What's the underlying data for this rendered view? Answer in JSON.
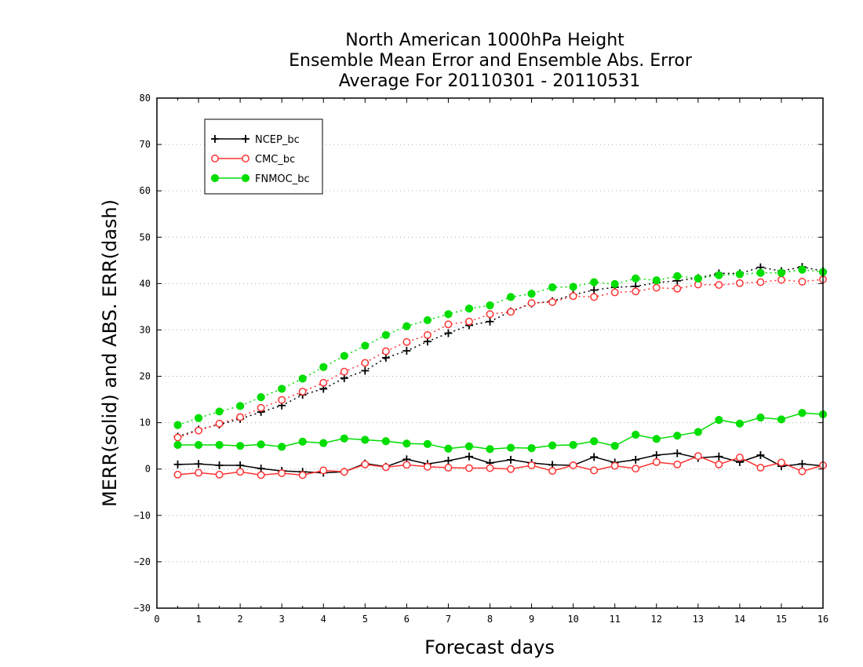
{
  "chart_data": {
    "type": "line",
    "title": [
      "North American 1000hPa Height",
      "Ensemble Mean Error and Ensemble Abs. Error",
      "Average For 20110301 - 20110531"
    ],
    "xlabel": "Forecast days",
    "ylabel": "MERR(solid) and ABS. ERR(dash)",
    "xlim": [
      0,
      16
    ],
    "ylim": [
      -30,
      80
    ],
    "xticks": [
      0,
      1,
      2,
      3,
      4,
      5,
      6,
      7,
      8,
      9,
      10,
      11,
      12,
      13,
      14,
      15,
      16
    ],
    "yticks": [
      -30,
      -20,
      -10,
      0,
      10,
      20,
      30,
      40,
      50,
      60,
      70,
      80
    ],
    "grid": "horizontal dotted",
    "legend_position": "top-left",
    "x": [
      0.5,
      1,
      1.5,
      2,
      2.5,
      3,
      3.5,
      4,
      4.5,
      5,
      5.5,
      6,
      6.5,
      7,
      7.5,
      8,
      8.5,
      9,
      9.5,
      10,
      10.5,
      11,
      11.5,
      12,
      12.5,
      13,
      13.5,
      14,
      14.5,
      15,
      15.5,
      16
    ],
    "series": [
      {
        "name": "NCEP_bc",
        "color": "#000000",
        "marker": "plus",
        "mean_error": [
          1.0,
          1.1,
          0.8,
          0.8,
          0.1,
          -0.4,
          -0.6,
          -0.8,
          -0.6,
          1.2,
          0.5,
          2.1,
          1.1,
          1.8,
          2.7,
          1.3,
          2.0,
          1.3,
          0.9,
          0.8,
          2.6,
          1.4,
          2.0,
          3.0,
          3.4,
          2.4,
          2.7,
          1.5,
          3.0,
          0.6,
          1.1,
          0.7
        ],
        "abs_error": [
          7.0,
          8.5,
          9.6,
          10.8,
          12.3,
          13.7,
          16.0,
          17.3,
          19.6,
          21.2,
          24.0,
          25.5,
          27.5,
          29.3,
          31.0,
          31.8,
          34.0,
          35.7,
          36.2,
          37.6,
          38.6,
          39.2,
          39.4,
          40.2,
          40.6,
          41.2,
          42.2,
          42.2,
          43.5,
          42.7,
          43.6,
          42.7
        ]
      },
      {
        "name": "CMC_bc",
        "color": "#ff3333",
        "marker": "open-circle",
        "mean_error": [
          -1.2,
          -0.8,
          -1.2,
          -0.6,
          -1.3,
          -0.9,
          -1.3,
          -0.3,
          -0.6,
          1.0,
          0.4,
          0.9,
          0.5,
          0.3,
          0.2,
          0.2,
          0.0,
          0.8,
          -0.4,
          0.8,
          -0.3,
          0.7,
          0.1,
          1.5,
          1.0,
          2.8,
          1.0,
          2.5,
          0.3,
          1.4,
          -0.5,
          0.8
        ],
        "abs_error": [
          6.8,
          8.3,
          9.8,
          11.2,
          13.2,
          14.9,
          16.7,
          18.6,
          21.0,
          22.9,
          25.4,
          27.4,
          28.9,
          31.2,
          31.8,
          33.4,
          33.9,
          35.8,
          36.0,
          37.3,
          37.1,
          38.1,
          38.3,
          39.1,
          38.9,
          39.8,
          39.7,
          40.1,
          40.3,
          40.8,
          40.4,
          40.9
        ]
      },
      {
        "name": "FNMOC_bc",
        "color": "#00dd00",
        "marker": "filled-circle",
        "mean_error": [
          5.2,
          5.2,
          5.2,
          5.0,
          5.3,
          4.8,
          5.9,
          5.6,
          6.6,
          6.3,
          6.0,
          5.5,
          5.4,
          4.4,
          4.9,
          4.3,
          4.6,
          4.5,
          5.1,
          5.2,
          6.0,
          5.0,
          7.4,
          6.5,
          7.2,
          8.0,
          10.6,
          9.8,
          11.1,
          10.7,
          12.1,
          11.8
        ],
        "abs_error": [
          9.5,
          11.0,
          12.4,
          13.6,
          15.5,
          17.3,
          19.5,
          22.0,
          24.4,
          26.6,
          28.9,
          30.8,
          32.1,
          33.4,
          34.6,
          35.3,
          37.1,
          37.8,
          39.2,
          39.3,
          40.3,
          39.9,
          41.1,
          40.7,
          41.6,
          41.1,
          41.8,
          42.0,
          42.3,
          42.3,
          43.0,
          42.5
        ]
      }
    ]
  }
}
